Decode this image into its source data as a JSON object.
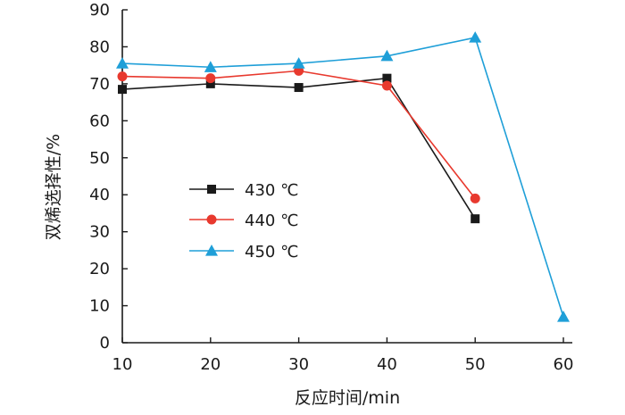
{
  "chart_data": {
    "type": "line",
    "xlabel": "反应时间/min",
    "ylabel": "双烯选择性/%",
    "xlim": [
      10,
      60
    ],
    "ylim": [
      0,
      90
    ],
    "x_ticks": [
      10,
      20,
      30,
      40,
      50,
      60
    ],
    "y_ticks": [
      0,
      10,
      20,
      30,
      40,
      50,
      60,
      70,
      80,
      90
    ],
    "grid": false,
    "legend_position": "center-left",
    "series": [
      {
        "name": "430 ℃",
        "color": "#1a1a1a",
        "marker": "square",
        "x": [
          10,
          20,
          30,
          40,
          50
        ],
        "y": [
          68.5,
          70,
          69,
          71.5,
          33.5
        ]
      },
      {
        "name": "440 ℃",
        "color": "#e8392e",
        "marker": "circle",
        "x": [
          10,
          20,
          30,
          40,
          50
        ],
        "y": [
          72,
          71.5,
          73.5,
          69.5,
          39
        ]
      },
      {
        "name": "450 ℃",
        "color": "#1f9fd8",
        "marker": "triangle",
        "x": [
          10,
          20,
          30,
          40,
          50,
          60
        ],
        "y": [
          75.5,
          74.5,
          75.5,
          77.5,
          82.5,
          7
        ]
      }
    ]
  }
}
